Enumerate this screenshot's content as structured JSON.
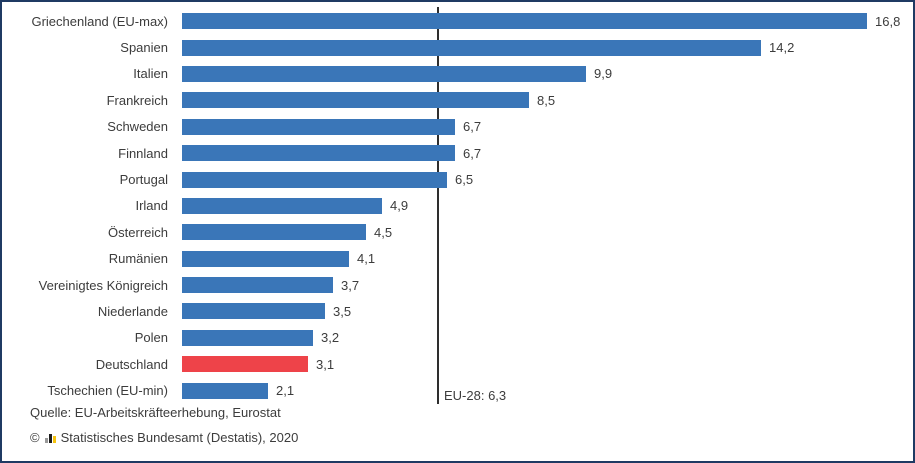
{
  "colors": {
    "bar_blue": "#3a76b8",
    "bar_red": "#ee4349",
    "frame_border": "#1f3a63",
    "reference_line": "#2e2e2e",
    "text": "#3c3c3c",
    "logo_gray": "#9a9a9a",
    "logo_dark": "#1c1c1c",
    "logo_yellow": "#f5c30f"
  },
  "chart_data": {
    "type": "bar",
    "orientation": "horizontal",
    "title": "",
    "categories": [
      "Griechenland (EU-max)",
      "Spanien",
      "Italien",
      "Frankreich",
      "Schweden",
      "Finnland",
      "Portugal",
      "Irland",
      "Österreich",
      "Rumänien",
      "Vereinigtes Königreich",
      "Niederlande",
      "Polen",
      "Deutschland",
      "Tschechien (EU-min)"
    ],
    "values": [
      16.8,
      14.2,
      9.9,
      8.5,
      6.7,
      6.7,
      6.5,
      4.9,
      4.5,
      4.1,
      3.7,
      3.5,
      3.2,
      3.1,
      2.1
    ],
    "display_values": [
      "16,8",
      "14,2",
      "9,9",
      "8,5",
      "6,7",
      "6,7",
      "6,5",
      "4,9",
      "4,5",
      "4,1",
      "3,7",
      "3,5",
      "3,2",
      "3,1",
      "2,1"
    ],
    "highlight": {
      "category": "Deutschland",
      "color": "#ee4349"
    },
    "bar_color": "#3a76b8",
    "reference_line": {
      "value": 6.3,
      "label": "EU-28: 6,3"
    },
    "xlim": [
      0,
      17.5
    ],
    "grid": "off",
    "legend": "none"
  },
  "footer": {
    "source": "Quelle: EU-Arbeitskräfteerhebung, Eurostat",
    "copyright_symbol": "©",
    "copyright_text": "Statistisches Bundesamt (Destatis), 2020",
    "logo": "destatis-mini-bar-chart-logo"
  }
}
